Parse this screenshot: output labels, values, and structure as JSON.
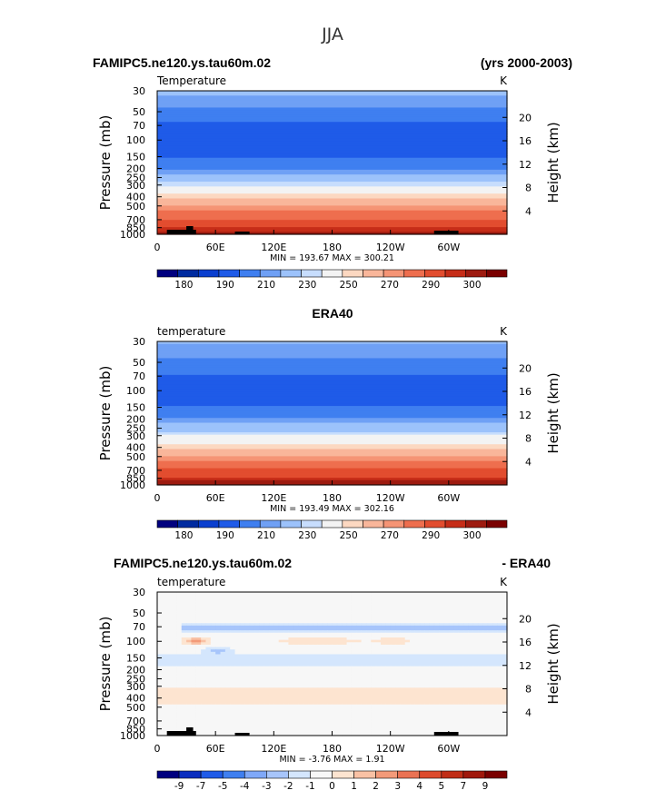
{
  "page": {
    "main_title": "JJA",
    "case_name": "FAMIPC5.ne120.ys.tau60m.02",
    "years": "(yrs 2000-2003)",
    "obs_name": "ERA40",
    "diff_left": "FAMIPC5.ne120.ys.tau60m.02",
    "diff_right": "- ERA40"
  },
  "colors": {
    "abs": [
      "#00007f",
      "#002ba0",
      "#0a3fcf",
      "#1f5be8",
      "#3f7ff0",
      "#6fa0f5",
      "#9cc2fb",
      "#c7ddfd",
      "#f3f3f3",
      "#fcd8c1",
      "#f9b69a",
      "#f59475",
      "#ee6e4e",
      "#e24d2f",
      "#c62d18",
      "#9e1b10",
      "#7a0000"
    ],
    "diff": [
      "#00007f",
      "#0a2dbf",
      "#1f5be8",
      "#3f7ff0",
      "#7fa8f8",
      "#a7c5fb",
      "#d4e6fd",
      "#f7f7f7",
      "#fde4d0",
      "#f9c1a4",
      "#f39a79",
      "#ea7253",
      "#dd4a2c",
      "#c02d16",
      "#a0180c",
      "#7a0000"
    ]
  },
  "chart_data": [
    {
      "type": "heatmap",
      "panel": "model",
      "left_label": "Temperature",
      "right_label": "K",
      "ylabel": "Pressure  (mb)",
      "ylabel_right": "Height  (km)",
      "x_ticks": [
        "0",
        "60E",
        "120E",
        "180",
        "120W",
        "60W"
      ],
      "x_tick_values": [
        0,
        60,
        120,
        180,
        240,
        300
      ],
      "xlim": [
        0,
        360
      ],
      "pressure_ticks": [
        "30",
        "50",
        "70",
        "100",
        "150",
        "200",
        "250",
        "300",
        "400",
        "500",
        "700",
        "850",
        "1000"
      ],
      "pressure_values": [
        30,
        50,
        70,
        100,
        150,
        200,
        250,
        300,
        400,
        500,
        700,
        850,
        1000
      ],
      "plim": [
        30,
        1000
      ],
      "height_ticks": [
        "4",
        "8",
        "12",
        "16",
        "20"
      ],
      "height_values": [
        4,
        8,
        12,
        16,
        20
      ],
      "levels": [
        180,
        185,
        190,
        195,
        200,
        205,
        210,
        215,
        220,
        225,
        230,
        235,
        240,
        245,
        250,
        255,
        260,
        265,
        270,
        275,
        280,
        285,
        290,
        295,
        300
      ],
      "colorbar_labels": [
        "180",
        "190",
        "210",
        "230",
        "250",
        "270",
        "290",
        "300"
      ],
      "min_max": "MIN = 193.67   MAX = 300.21",
      "profile": [
        [
          30,
          222
        ],
        [
          50,
          213
        ],
        [
          70,
          203
        ],
        [
          100,
          197
        ],
        [
          120,
          199
        ],
        [
          150,
          205
        ],
        [
          200,
          214
        ],
        [
          250,
          225
        ],
        [
          300,
          234
        ],
        [
          400,
          248
        ],
        [
          500,
          259
        ],
        [
          700,
          276
        ],
        [
          850,
          286
        ],
        [
          1000,
          293
        ]
      ]
    },
    {
      "type": "heatmap",
      "panel": "obs",
      "left_label": "temperature",
      "right_label": "K",
      "ylabel": "Pressure  (mb)",
      "ylabel_right": "Height  (km)",
      "x_ticks": [
        "0",
        "60E",
        "120E",
        "180",
        "120W",
        "60W"
      ],
      "x_tick_values": [
        0,
        60,
        120,
        180,
        240,
        300
      ],
      "xlim": [
        0,
        360
      ],
      "pressure_ticks": [
        "30",
        "50",
        "70",
        "100",
        "150",
        "200",
        "250",
        "300",
        "400",
        "500",
        "700",
        "850",
        "1000"
      ],
      "pressure_values": [
        30,
        50,
        70,
        100,
        150,
        200,
        250,
        300,
        400,
        500,
        700,
        850,
        1000
      ],
      "plim": [
        30,
        1000
      ],
      "height_ticks": [
        "4",
        "8",
        "12",
        "16",
        "20"
      ],
      "height_values": [
        4,
        8,
        12,
        16,
        20
      ],
      "levels": [
        180,
        185,
        190,
        195,
        200,
        205,
        210,
        215,
        220,
        225,
        230,
        235,
        240,
        245,
        250,
        255,
        260,
        265,
        270,
        275,
        280,
        285,
        290,
        295,
        300
      ],
      "colorbar_labels": [
        "180",
        "190",
        "210",
        "230",
        "250",
        "270",
        "290",
        "300"
      ],
      "min_max": "MIN = 193.49   MAX = 302.16",
      "profile": [
        [
          30,
          221
        ],
        [
          50,
          213
        ],
        [
          70,
          204
        ],
        [
          100,
          198
        ],
        [
          120,
          200
        ],
        [
          150,
          206
        ],
        [
          200,
          215
        ],
        [
          250,
          226
        ],
        [
          300,
          235
        ],
        [
          400,
          249
        ],
        [
          500,
          260
        ],
        [
          700,
          277
        ],
        [
          850,
          287
        ],
        [
          1000,
          294
        ]
      ]
    },
    {
      "type": "heatmap",
      "panel": "diff",
      "left_label": "temperature",
      "right_label": "K",
      "ylabel": "Pressure  (mb)",
      "ylabel_right": "Height  (km)",
      "x_ticks": [
        "0",
        "60E",
        "120E",
        "180",
        "120W",
        "60W"
      ],
      "x_tick_values": [
        0,
        60,
        120,
        180,
        240,
        300
      ],
      "xlim": [
        0,
        360
      ],
      "pressure_ticks": [
        "30",
        "50",
        "70",
        "100",
        "150",
        "200",
        "250",
        "300",
        "400",
        "500",
        "700",
        "850",
        "1000"
      ],
      "pressure_values": [
        30,
        50,
        70,
        100,
        150,
        200,
        250,
        300,
        400,
        500,
        700,
        850,
        1000
      ],
      "plim": [
        30,
        1000
      ],
      "height_ticks": [
        "4",
        "8",
        "12",
        "16",
        "20"
      ],
      "height_values": [
        4,
        8,
        12,
        16,
        20
      ],
      "levels": [
        -9,
        -7,
        -5,
        -4,
        -3,
        -2,
        -1,
        0,
        1,
        2,
        3,
        4,
        5,
        7,
        9
      ],
      "colorbar_labels": [
        "-9",
        "-7",
        "-5",
        "-4",
        "-3",
        "-2",
        "-1",
        "0",
        "1",
        "2",
        "3",
        "4",
        "5",
        "7",
        "9"
      ],
      "min_max": "MIN =   -3.76   MAX =    1.91"
    }
  ]
}
